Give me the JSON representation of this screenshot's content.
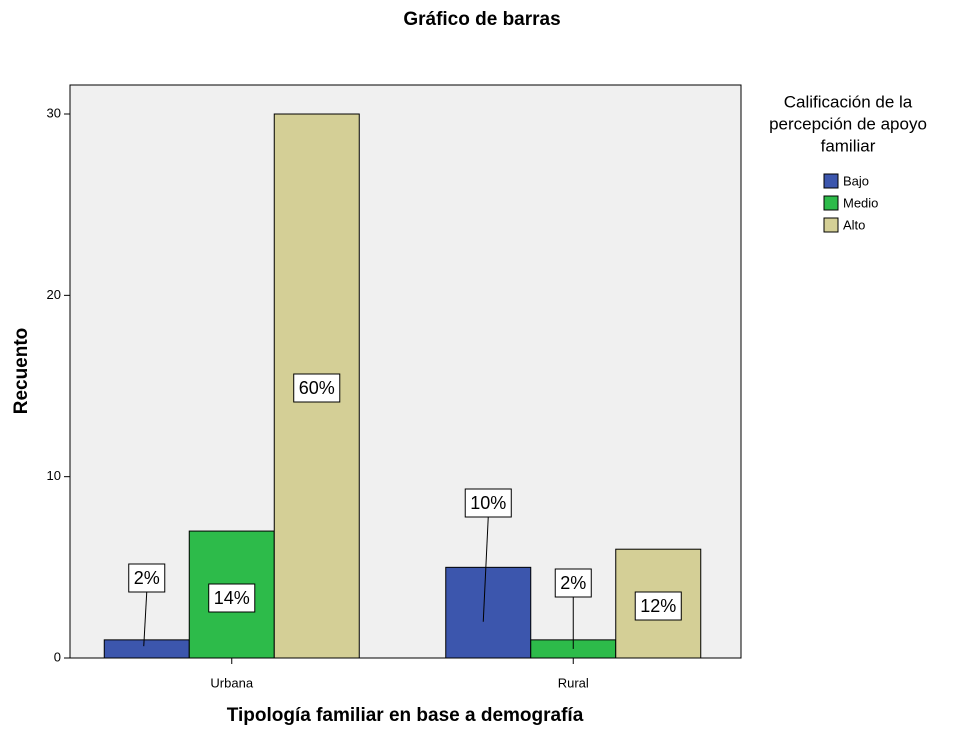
{
  "chart_data": {
    "type": "bar",
    "title": "Gráfico de barras",
    "x_label": "Tipología familiar en base a demografía",
    "y_label": "Recuento",
    "legend_title": [
      "Calificación de la",
      "percepción de apoyo",
      "familiar"
    ],
    "categories": [
      "Urbana",
      "Rural"
    ],
    "series": [
      {
        "name": "Bajo",
        "color": "#3c56ad",
        "values": [
          1,
          5
        ],
        "percent_labels": [
          "2%",
          "10%"
        ]
      },
      {
        "name": "Medio",
        "color": "#2dbb4a",
        "values": [
          7,
          1
        ],
        "percent_labels": [
          "14%",
          "2%"
        ]
      },
      {
        "name": "Alto",
        "color": "#d4cf96",
        "values": [
          30,
          6
        ],
        "percent_labels": [
          "60%",
          "12%"
        ]
      }
    ],
    "ylim": [
      0,
      31.6
    ],
    "yticks": [
      0,
      10,
      20,
      30
    ]
  }
}
